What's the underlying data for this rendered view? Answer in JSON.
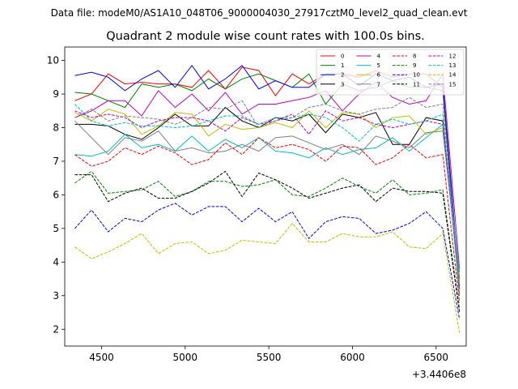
{
  "suptitle": "Data file: modeM0/AS1A10_048T06_9000004030_27917cztM0_level2_quad_clean.evt",
  "chart_data": {
    "type": "line",
    "title": "Quadrant 2 module wise count rates with 100.0s bins.",
    "xlabel": "",
    "ylabel": "",
    "x_offset_label": "+3.4406e8",
    "xlim": [
      4280,
      6680
    ],
    "ylim": [
      1.5,
      10.4
    ],
    "xticks": [
      4500,
      5000,
      5500,
      6000,
      6500
    ],
    "yticks": [
      2,
      3,
      4,
      5,
      6,
      7,
      8,
      9,
      10
    ],
    "x": [
      4340,
      4440,
      4540,
      4640,
      4740,
      4840,
      4940,
      5040,
      5140,
      5240,
      5340,
      5440,
      5540,
      5640,
      5740,
      5840,
      5940,
      6040,
      6140,
      6240,
      6340,
      6440,
      6540,
      6640
    ],
    "legend_position": "upper-right",
    "series": [
      {
        "name": "0",
        "color": "#ff0000",
        "dash": false,
        "values": [
          8.8,
          9.0,
          9.6,
          9.3,
          9.35,
          9.3,
          9.3,
          9.2,
          9.7,
          9.15,
          9.8,
          9.7,
          8.95,
          9.6,
          9.3,
          9.6,
          9.6,
          9.5,
          9.7,
          9.5,
          9.6,
          9.6,
          9.2,
          3.0
        ]
      },
      {
        "name": "1",
        "color": "#008000",
        "dash": false,
        "values": [
          9.05,
          9.0,
          8.8,
          8.6,
          9.3,
          9.2,
          9.3,
          9.1,
          9.45,
          9.15,
          9.45,
          9.6,
          9.4,
          9.2,
          9.6,
          8.7,
          9.3,
          9.1,
          9.2,
          9.4,
          9.2,
          9.2,
          9.1,
          3.2
        ]
      },
      {
        "name": "2",
        "color": "#0000ff",
        "dash": false,
        "values": [
          9.55,
          9.65,
          9.5,
          9.1,
          9.45,
          9.7,
          9.2,
          9.85,
          9.15,
          9.45,
          9.85,
          9.15,
          9.4,
          9.2,
          9.2,
          9.6,
          9.6,
          9.25,
          9.6,
          9.4,
          9.5,
          9.2,
          9.3,
          3.3
        ]
      },
      {
        "name": "3",
        "color": "#000000",
        "dash": false,
        "values": [
          8.1,
          8.1,
          8.05,
          7.8,
          7.65,
          8.0,
          8.4,
          8.05,
          8.05,
          8.6,
          8.2,
          8.0,
          8.3,
          8.2,
          8.4,
          7.85,
          8.4,
          8.3,
          8.45,
          7.5,
          7.5,
          8.3,
          8.2,
          3.5
        ]
      },
      {
        "name": "4",
        "color": "#bf00bf",
        "dash": false,
        "values": [
          8.3,
          8.5,
          8.8,
          8.8,
          8.35,
          9.1,
          8.6,
          9.0,
          8.5,
          9.05,
          8.4,
          8.7,
          8.7,
          8.8,
          8.9,
          9.1,
          8.5,
          9.0,
          9.35,
          8.9,
          8.7,
          8.8,
          9.6,
          3.8
        ]
      },
      {
        "name": "5",
        "color": "#00bfbf",
        "dash": false,
        "values": [
          7.2,
          7.15,
          7.3,
          7.8,
          7.4,
          7.5,
          7.3,
          7.75,
          7.3,
          7.65,
          7.4,
          7.7,
          7.3,
          7.25,
          7.1,
          7.4,
          7.2,
          7.35,
          7.4,
          7.7,
          7.3,
          7.7,
          8.1,
          3.7
        ]
      },
      {
        "name": "6",
        "color": "#bfbf00",
        "dash": false,
        "values": [
          8.45,
          8.2,
          8.55,
          8.4,
          7.8,
          8.05,
          8.45,
          8.4,
          7.75,
          8.1,
          7.95,
          8.0,
          8.15,
          8.0,
          8.5,
          8.0,
          8.45,
          8.4,
          8.0,
          8.3,
          8.35,
          7.8,
          8.0,
          3.4
        ]
      },
      {
        "name": "7",
        "color": "#808080",
        "dash": false,
        "values": [
          8.2,
          7.7,
          7.2,
          7.7,
          7.6,
          7.9,
          7.3,
          7.4,
          7.25,
          7.3,
          7.5,
          7.3,
          7.7,
          7.75,
          7.55,
          7.35,
          7.5,
          7.2,
          7.75,
          7.6,
          7.4,
          7.85,
          7.9,
          3.5
        ]
      },
      {
        "name": "8",
        "color": "#ff0000",
        "dash": true,
        "values": [
          7.2,
          6.85,
          7.0,
          7.4,
          7.2,
          7.45,
          7.25,
          6.9,
          7.05,
          7.55,
          7.2,
          7.7,
          7.4,
          7.5,
          7.35,
          7.0,
          7.45,
          7.4,
          6.9,
          7.1,
          7.5,
          7.1,
          7.2,
          2.8
        ]
      },
      {
        "name": "9",
        "color": "#008000",
        "dash": true,
        "values": [
          6.35,
          6.7,
          6.05,
          6.1,
          6.15,
          6.4,
          5.95,
          6.1,
          6.4,
          6.4,
          6.25,
          6.3,
          6.45,
          6.0,
          5.95,
          6.2,
          6.5,
          6.25,
          6.05,
          6.45,
          6.0,
          6.05,
          6.15,
          2.6
        ]
      },
      {
        "name": "10",
        "color": "#0000ff",
        "dash": true,
        "values": [
          5.0,
          5.55,
          4.9,
          5.3,
          5.2,
          5.55,
          5.75,
          5.4,
          5.65,
          5.65,
          5.2,
          5.6,
          5.2,
          5.5,
          4.7,
          5.2,
          5.35,
          5.3,
          4.85,
          4.95,
          5.15,
          5.5,
          5.0,
          2.3
        ]
      },
      {
        "name": "11",
        "color": "#000000",
        "dash": true,
        "values": [
          6.6,
          6.6,
          5.8,
          6.05,
          6.2,
          5.9,
          5.9,
          6.1,
          6.35,
          6.7,
          5.95,
          6.65,
          6.45,
          6.2,
          5.9,
          6.05,
          6.2,
          6.3,
          5.8,
          6.2,
          6.1,
          6.1,
          6.05,
          2.5
        ]
      },
      {
        "name": "12",
        "color": "#bf00bf",
        "dash": true,
        "values": [
          8.5,
          8.3,
          8.4,
          8.3,
          8.0,
          8.2,
          8.3,
          8.3,
          8.2,
          7.9,
          8.3,
          8.1,
          8.2,
          8.4,
          7.8,
          8.5,
          8.2,
          8.3,
          8.1,
          8.0,
          8.1,
          8.2,
          8.1,
          3.2
        ]
      },
      {
        "name": "13",
        "color": "#00bfbf",
        "dash": true,
        "values": [
          8.7,
          8.2,
          8.05,
          8.15,
          8.05,
          8.05,
          8.0,
          8.05,
          8.2,
          8.35,
          8.35,
          8.1,
          8.3,
          8.3,
          8.4,
          8.3,
          8.0,
          7.6,
          8.1,
          8.25,
          8.1,
          8.2,
          8.4,
          3.0
        ]
      },
      {
        "name": "14",
        "color": "#bfbf00",
        "dash": true,
        "values": [
          4.45,
          4.1,
          4.3,
          4.55,
          4.85,
          4.25,
          4.55,
          4.6,
          4.25,
          4.35,
          4.65,
          4.6,
          4.55,
          5.15,
          4.6,
          4.6,
          4.85,
          4.75,
          4.75,
          4.9,
          4.45,
          4.4,
          4.85,
          1.9
        ]
      },
      {
        "name": "15",
        "color": "#808080",
        "dash": true,
        "values": [
          8.3,
          8.55,
          8.2,
          8.35,
          8.3,
          8.25,
          8.1,
          8.3,
          8.6,
          8.55,
          8.8,
          8.0,
          8.2,
          8.3,
          8.6,
          8.7,
          8.5,
          8.4,
          8.55,
          8.6,
          8.9,
          8.6,
          8.7,
          3.3
        ]
      }
    ]
  }
}
